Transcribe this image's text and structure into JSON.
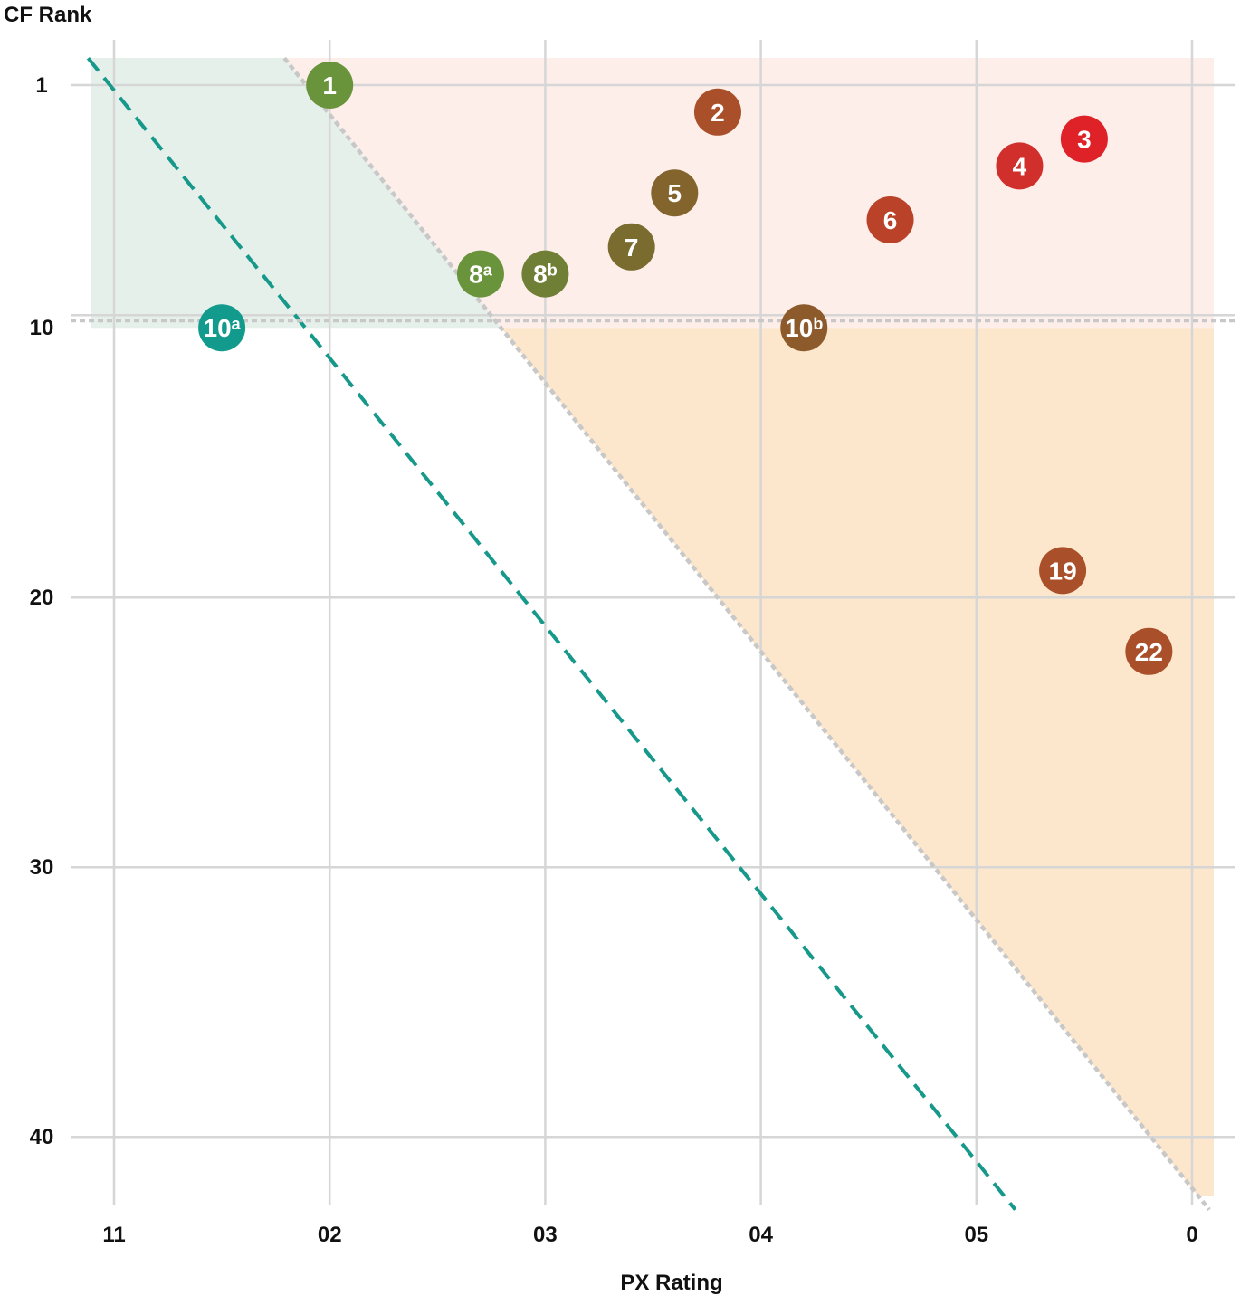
{
  "chart_data": {
    "type": "scatter",
    "xlabel": "PX Rating",
    "ylabel": "CF Rank",
    "x_ticks": [
      {
        "label": "11",
        "index": 0
      },
      {
        "label": "02",
        "index": 1
      },
      {
        "label": "03",
        "index": 2
      },
      {
        "label": "04",
        "index": 3
      },
      {
        "label": "05",
        "index": 4
      },
      {
        "label": "0",
        "index": 5
      }
    ],
    "y_ticks": [
      1,
      10,
      20,
      30,
      40
    ],
    "ylim": [
      0,
      41.5
    ],
    "y_inverted": true,
    "grid": true,
    "regions": [
      {
        "name": "green-zone",
        "color": "#e6f0ea"
      },
      {
        "name": "pink-zone",
        "color": "#fdeeea"
      },
      {
        "name": "orange-zone",
        "color": "#fde7cc"
      }
    ],
    "reference_lines": [
      {
        "name": "teal-dashed-line",
        "color": "#16988a",
        "from": [
          -0.12,
          0
        ],
        "to": [
          4.18,
          42.7
        ]
      },
      {
        "name": "gray-dashed-diagonal",
        "color": "#c8c8c8",
        "from": [
          0.79,
          0
        ],
        "to": [
          5.08,
          42.7
        ]
      },
      {
        "name": "gray-dashed-horizontal",
        "color": "#c8c8c8",
        "y": 10
      }
    ],
    "points": [
      {
        "label": "1",
        "sup": "",
        "x": 1.0,
        "y": 1,
        "color": "#6a943c"
      },
      {
        "label": "2",
        "sup": "",
        "x": 2.8,
        "y": 2,
        "color": "#a9502a"
      },
      {
        "label": "3",
        "sup": "",
        "x": 4.5,
        "y": 3,
        "color": "#de2227"
      },
      {
        "label": "4",
        "sup": "",
        "x": 4.2,
        "y": 4,
        "color": "#d12f2c"
      },
      {
        "label": "5",
        "sup": "",
        "x": 2.6,
        "y": 5,
        "color": "#83642d"
      },
      {
        "label": "6",
        "sup": "",
        "x": 3.6,
        "y": 6,
        "color": "#ba4229"
      },
      {
        "label": "7",
        "sup": "",
        "x": 2.4,
        "y": 7,
        "color": "#7a6b2e"
      },
      {
        "label": "8",
        "sup": "a",
        "x": 1.7,
        "y": 8,
        "color": "#6a943c"
      },
      {
        "label": "8",
        "sup": "b",
        "x": 2.0,
        "y": 8,
        "color": "#6f7f35"
      },
      {
        "label": "10",
        "sup": "a",
        "x": 0.5,
        "y": 10,
        "color": "#129b8c"
      },
      {
        "label": "10",
        "sup": "b",
        "x": 3.2,
        "y": 10,
        "color": "#8d5a2b"
      },
      {
        "label": "19",
        "sup": "",
        "x": 4.4,
        "y": 19,
        "color": "#a9502a"
      },
      {
        "label": "22",
        "sup": "",
        "x": 4.8,
        "y": 22,
        "color": "#a9502a"
      }
    ]
  }
}
